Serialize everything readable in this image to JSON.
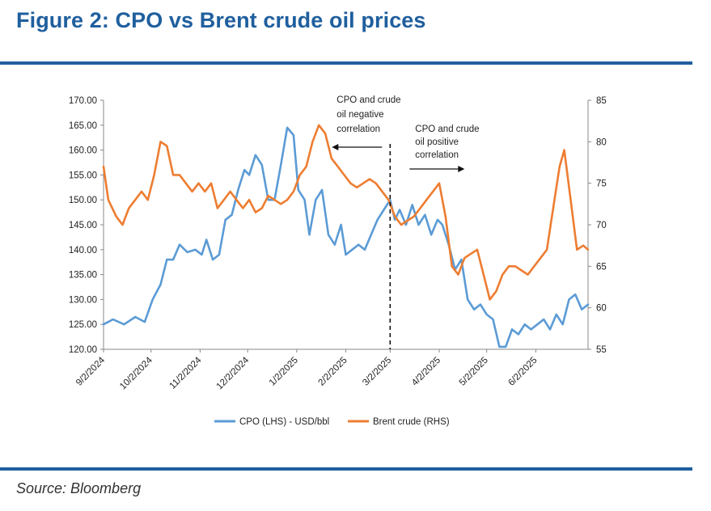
{
  "title": "Figure 2: CPO vs Brent crude oil prices",
  "source": "Source: Bloomberg",
  "colors": {
    "accent": "#1f5f9e",
    "cpo": "#5b9bd5",
    "brent": "#ed7d31"
  },
  "chart_data": {
    "type": "line",
    "x_ticks": [
      "9/2/2024",
      "10/2/2024",
      "11/2/2024",
      "12/2/2024",
      "1/2/2025",
      "2/2/2025",
      "3/2/2025",
      "4/2/2025",
      "5/2/2025",
      "6/2/2025"
    ],
    "x_range": [
      "2024-09-02",
      "2025-07-05"
    ],
    "left_axis": {
      "ylim": [
        120,
        170
      ],
      "ticks": [
        "170.00",
        "165.00",
        "160.00",
        "155.00",
        "150.00",
        "145.00",
        "140.00",
        "135.00",
        "130.00",
        "125.00",
        "120.00"
      ]
    },
    "right_axis": {
      "ylim": [
        55,
        85
      ],
      "ticks": [
        "85",
        "80",
        "75",
        "70",
        "65",
        "60",
        "55"
      ]
    },
    "divider_date": "2025-03-02",
    "annotations": {
      "negative": [
        "CPO and crude",
        "oil negative",
        "correlation"
      ],
      "positive": [
        "CPO and crude",
        "oil positive",
        "correlation"
      ]
    },
    "legend_position": "bottom",
    "series": [
      {
        "name": "CPO (LHS) - USD/bbl",
        "axis": "left",
        "color": "#5b9bd5",
        "points": [
          [
            "2024-09-02",
            125
          ],
          [
            "2024-09-08",
            126
          ],
          [
            "2024-09-15",
            125
          ],
          [
            "2024-09-22",
            126.5
          ],
          [
            "2024-09-28",
            125.5
          ],
          [
            "2024-10-03",
            130
          ],
          [
            "2024-10-08",
            133
          ],
          [
            "2024-10-12",
            138
          ],
          [
            "2024-10-16",
            138
          ],
          [
            "2024-10-20",
            141
          ],
          [
            "2024-10-25",
            139.5
          ],
          [
            "2024-10-30",
            140
          ],
          [
            "2024-11-03",
            139
          ],
          [
            "2024-11-06",
            142
          ],
          [
            "2024-11-10",
            138
          ],
          [
            "2024-11-14",
            139
          ],
          [
            "2024-11-18",
            146
          ],
          [
            "2024-11-22",
            147
          ],
          [
            "2024-11-26",
            152
          ],
          [
            "2024-11-30",
            156
          ],
          [
            "2024-12-03",
            155
          ],
          [
            "2024-12-07",
            159
          ],
          [
            "2024-12-11",
            157
          ],
          [
            "2024-12-15",
            150
          ],
          [
            "2024-12-19",
            150
          ],
          [
            "2024-12-23",
            157
          ],
          [
            "2024-12-27",
            164.5
          ],
          [
            "2024-12-31",
            163
          ],
          [
            "2025-01-03",
            152
          ],
          [
            "2025-01-07",
            150
          ],
          [
            "2025-01-10",
            143
          ],
          [
            "2025-01-14",
            150
          ],
          [
            "2025-01-18",
            152
          ],
          [
            "2025-01-22",
            143
          ],
          [
            "2025-01-26",
            141
          ],
          [
            "2025-01-30",
            145
          ],
          [
            "2025-02-02",
            139
          ],
          [
            "2025-02-06",
            140
          ],
          [
            "2025-02-10",
            141
          ],
          [
            "2025-02-14",
            140
          ],
          [
            "2025-02-18",
            143
          ],
          [
            "2025-02-22",
            146
          ],
          [
            "2025-02-26",
            148
          ],
          [
            "2025-03-02",
            150
          ],
          [
            "2025-03-05",
            146
          ],
          [
            "2025-03-08",
            148
          ],
          [
            "2025-03-12",
            145
          ],
          [
            "2025-03-16",
            149
          ],
          [
            "2025-03-20",
            145
          ],
          [
            "2025-03-24",
            147
          ],
          [
            "2025-03-28",
            143
          ],
          [
            "2025-04-01",
            146
          ],
          [
            "2025-04-04",
            145
          ],
          [
            "2025-04-08",
            141
          ],
          [
            "2025-04-12",
            136
          ],
          [
            "2025-04-16",
            138
          ],
          [
            "2025-04-20",
            130
          ],
          [
            "2025-04-24",
            128
          ],
          [
            "2025-04-28",
            129
          ],
          [
            "2025-05-02",
            127
          ],
          [
            "2025-05-06",
            126
          ],
          [
            "2025-05-10",
            120.5
          ],
          [
            "2025-05-14",
            120.5
          ],
          [
            "2025-05-18",
            124
          ],
          [
            "2025-05-22",
            123
          ],
          [
            "2025-05-26",
            125
          ],
          [
            "2025-05-30",
            124
          ],
          [
            "2025-06-03",
            125
          ],
          [
            "2025-06-07",
            126
          ],
          [
            "2025-06-11",
            124
          ],
          [
            "2025-06-15",
            127
          ],
          [
            "2025-06-19",
            125
          ],
          [
            "2025-06-23",
            130
          ],
          [
            "2025-06-27",
            131
          ],
          [
            "2025-07-01",
            128
          ],
          [
            "2025-07-05",
            129
          ]
        ]
      },
      {
        "name": "Brent crude (RHS)",
        "axis": "right",
        "color": "#ed7d31",
        "points": [
          [
            "2024-09-02",
            77
          ],
          [
            "2024-09-05",
            73
          ],
          [
            "2024-09-10",
            71
          ],
          [
            "2024-09-14",
            70
          ],
          [
            "2024-09-18",
            72
          ],
          [
            "2024-09-22",
            73
          ],
          [
            "2024-09-26",
            74
          ],
          [
            "2024-09-30",
            73
          ],
          [
            "2024-10-04",
            76
          ],
          [
            "2024-10-08",
            80
          ],
          [
            "2024-10-12",
            79.5
          ],
          [
            "2024-10-16",
            76
          ],
          [
            "2024-10-20",
            76
          ],
          [
            "2024-10-24",
            75
          ],
          [
            "2024-10-28",
            74
          ],
          [
            "2024-11-01",
            75
          ],
          [
            "2024-11-05",
            74
          ],
          [
            "2024-11-09",
            75
          ],
          [
            "2024-11-13",
            72
          ],
          [
            "2024-11-17",
            73
          ],
          [
            "2024-11-21",
            74
          ],
          [
            "2024-11-25",
            73
          ],
          [
            "2024-11-29",
            72
          ],
          [
            "2024-12-03",
            73
          ],
          [
            "2024-12-07",
            71.5
          ],
          [
            "2024-12-11",
            72
          ],
          [
            "2024-12-15",
            73.5
          ],
          [
            "2024-12-19",
            73
          ],
          [
            "2024-12-23",
            72.5
          ],
          [
            "2024-12-27",
            73
          ],
          [
            "2024-12-31",
            74
          ],
          [
            "2025-01-04",
            76
          ],
          [
            "2025-01-08",
            77
          ],
          [
            "2025-01-12",
            80
          ],
          [
            "2025-01-16",
            82
          ],
          [
            "2025-01-20",
            81
          ],
          [
            "2025-01-24",
            78
          ],
          [
            "2025-01-28",
            77
          ],
          [
            "2025-02-01",
            76
          ],
          [
            "2025-02-05",
            75
          ],
          [
            "2025-02-09",
            74.5
          ],
          [
            "2025-02-13",
            75
          ],
          [
            "2025-02-17",
            75.5
          ],
          [
            "2025-02-21",
            75
          ],
          [
            "2025-02-25",
            74
          ],
          [
            "2025-03-01",
            73
          ],
          [
            "2025-03-05",
            71
          ],
          [
            "2025-03-09",
            70
          ],
          [
            "2025-03-13",
            70.5
          ],
          [
            "2025-03-17",
            71
          ],
          [
            "2025-03-21",
            72
          ],
          [
            "2025-03-25",
            73
          ],
          [
            "2025-03-29",
            74
          ],
          [
            "2025-04-02",
            75
          ],
          [
            "2025-04-06",
            71
          ],
          [
            "2025-04-10",
            65
          ],
          [
            "2025-04-14",
            64
          ],
          [
            "2025-04-18",
            66
          ],
          [
            "2025-04-22",
            66.5
          ],
          [
            "2025-04-26",
            67
          ],
          [
            "2025-04-30",
            64
          ],
          [
            "2025-05-04",
            61
          ],
          [
            "2025-05-08",
            62
          ],
          [
            "2025-05-12",
            64
          ],
          [
            "2025-05-16",
            65
          ],
          [
            "2025-05-20",
            65
          ],
          [
            "2025-05-24",
            64.5
          ],
          [
            "2025-05-28",
            64
          ],
          [
            "2025-06-01",
            65
          ],
          [
            "2025-06-05",
            66
          ],
          [
            "2025-06-09",
            67
          ],
          [
            "2025-06-13",
            72
          ],
          [
            "2025-06-17",
            77
          ],
          [
            "2025-06-20",
            79
          ],
          [
            "2025-06-24",
            73
          ],
          [
            "2025-06-28",
            67
          ],
          [
            "2025-07-02",
            67.5
          ],
          [
            "2025-07-05",
            67
          ]
        ]
      }
    ]
  }
}
